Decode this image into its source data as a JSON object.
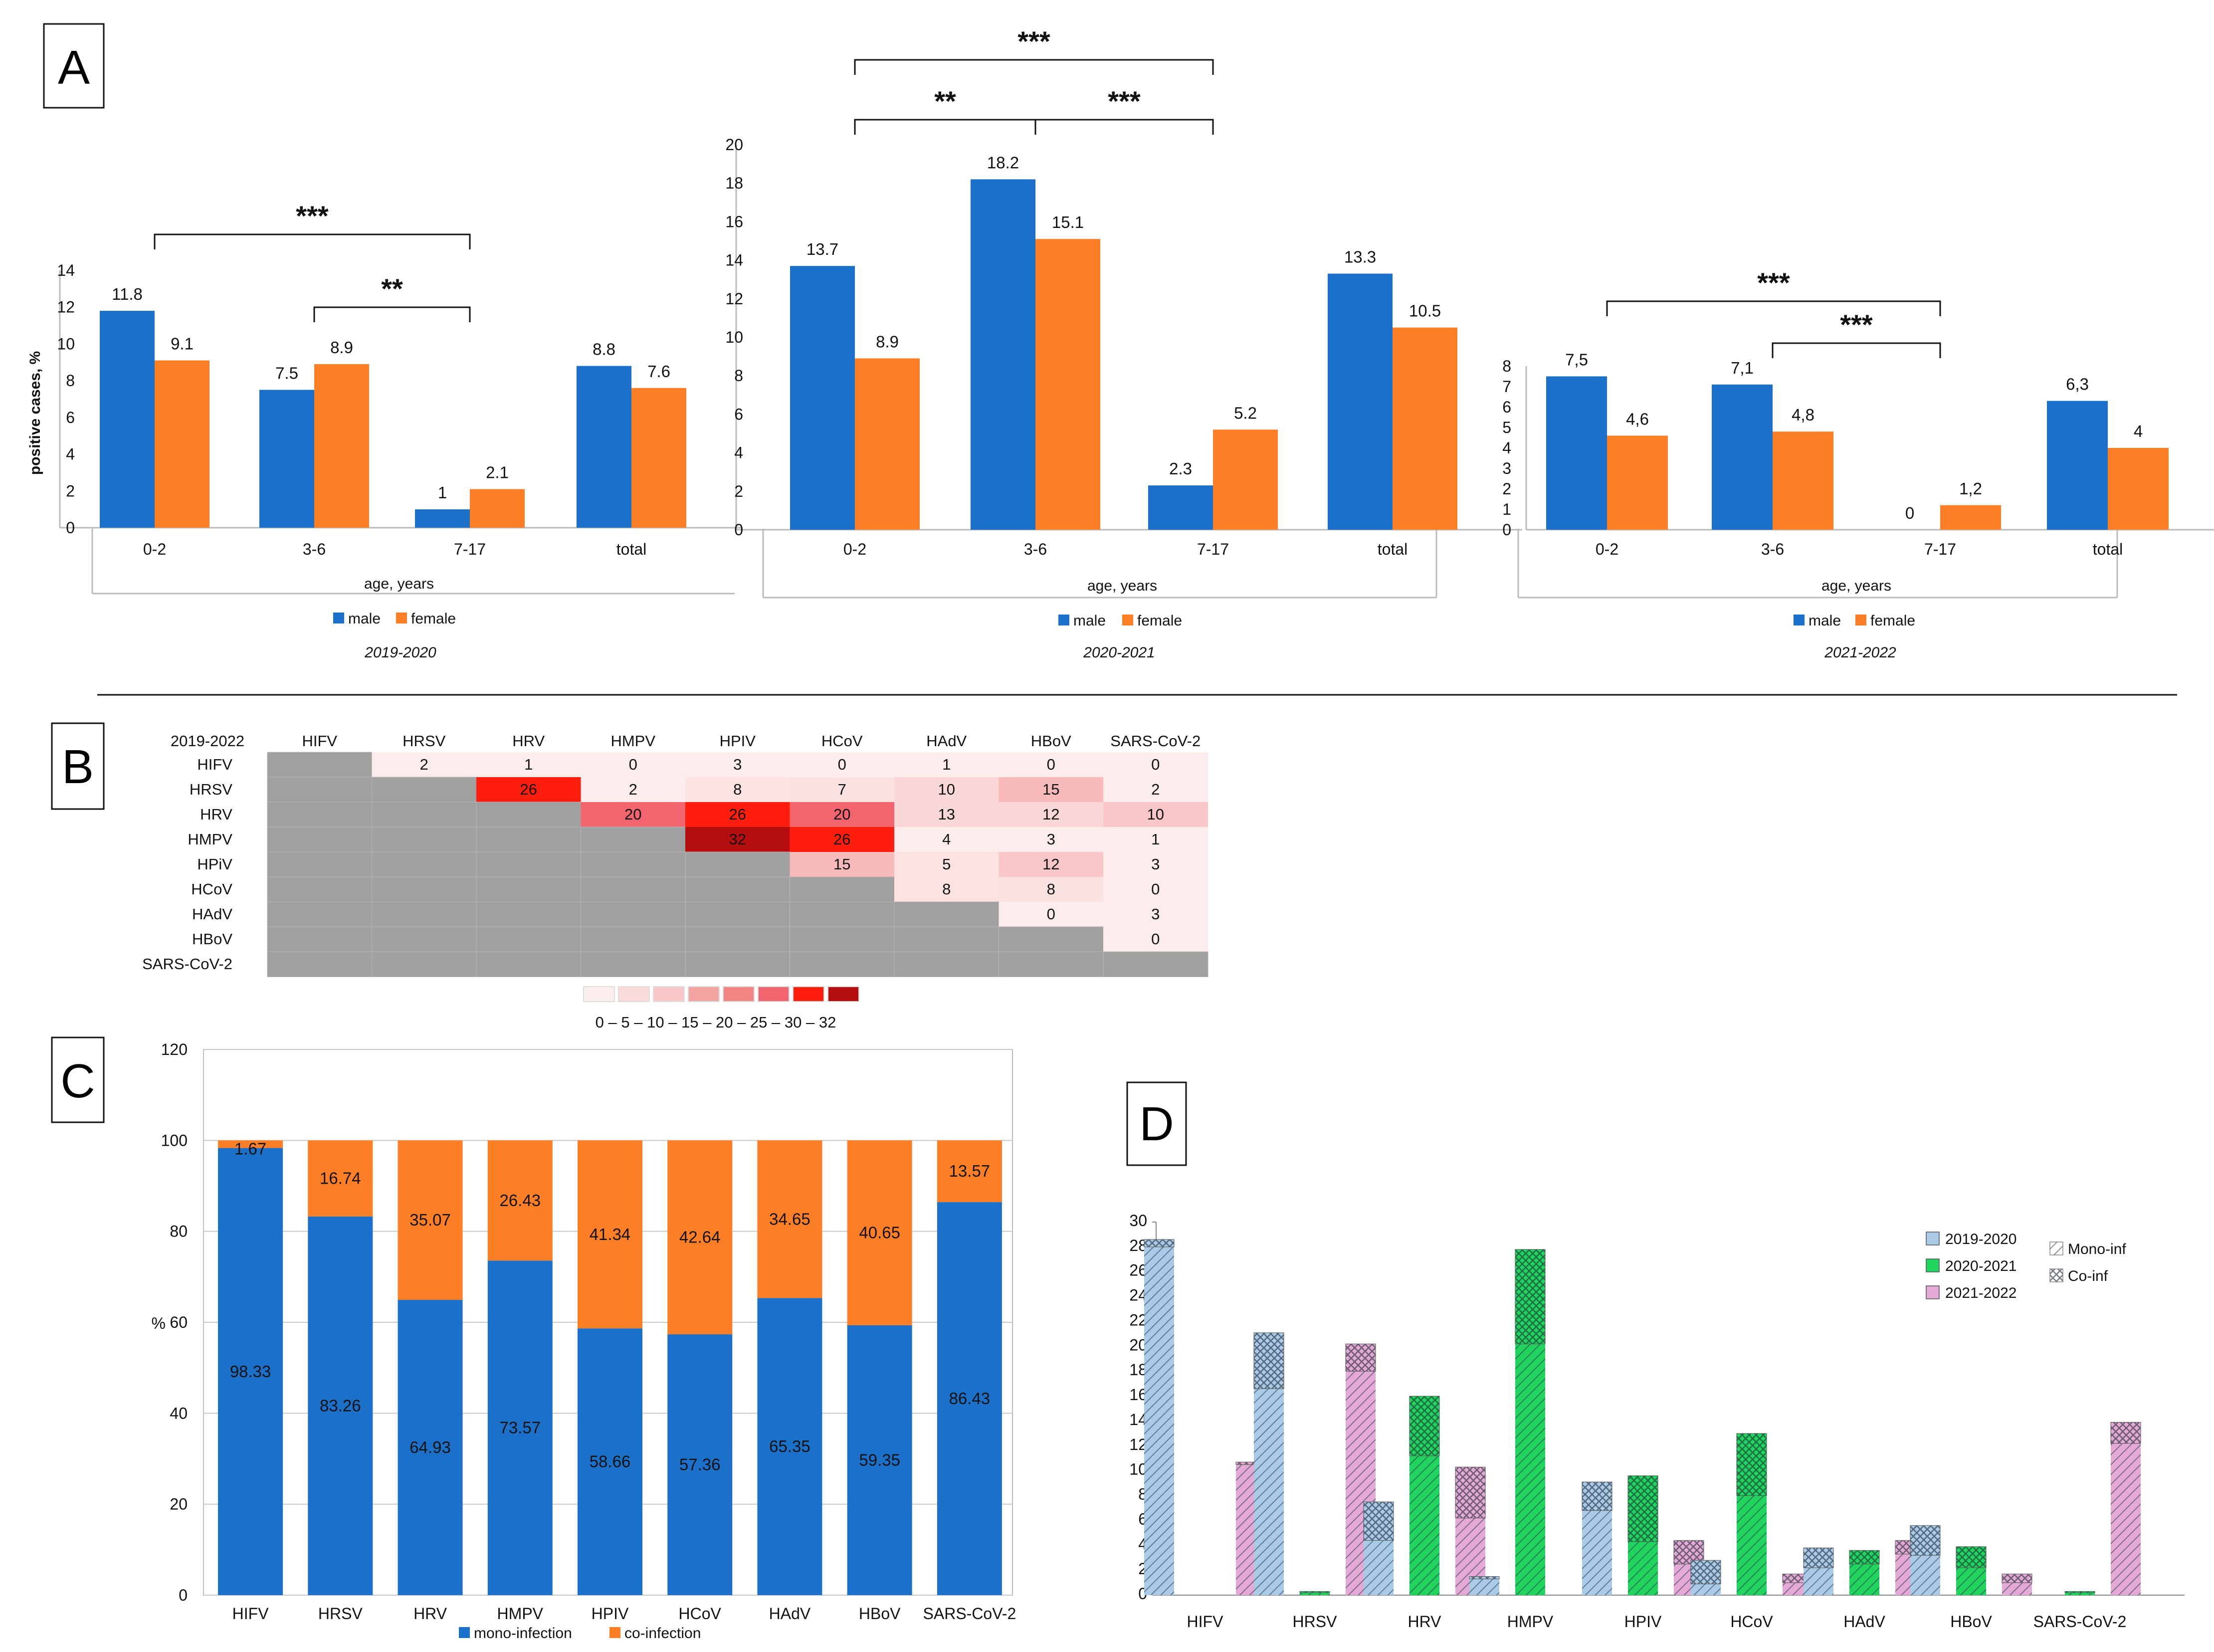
{
  "panel_labels": {
    "a": "A",
    "b": "B",
    "c": "C",
    "d": "D"
  },
  "colors": {
    "male": "#1B71C9",
    "female": "#FF7F27",
    "mono": "#1B71C9",
    "co": "#FF7F27",
    "gray": "#A0A0A0",
    "d_2019": "#A9CBE8",
    "d_2020": "#20D45E",
    "d_2021": "#E5A9D6"
  },
  "chart_data": [
    {
      "id": "A1",
      "type": "bar",
      "subtitle": "2019-2020",
      "categories": [
        "0-2",
        "3-6",
        "7-17",
        "total"
      ],
      "series": [
        {
          "name": "male",
          "values": [
            11.8,
            7.5,
            1,
            8.8
          ],
          "labels": [
            "11.8",
            "7.5",
            "1",
            "8.8"
          ]
        },
        {
          "name": "female",
          "values": [
            9.1,
            8.9,
            2.1,
            7.6
          ],
          "labels": [
            "9.1",
            "8.9",
            "2.1",
            "7.6"
          ]
        }
      ],
      "ylim": [
        0,
        14
      ],
      "yticks": [
        "0",
        "2",
        "4",
        "6",
        "8",
        "10",
        "12",
        "14"
      ],
      "ylabel": "positive cases, %",
      "xlabel": "age, years",
      "significance": [
        {
          "from": "0-2",
          "to": "7-17",
          "label": "***"
        },
        {
          "from": "3-6",
          "to": "7-17",
          "label": "**"
        }
      ]
    },
    {
      "id": "A2",
      "type": "bar",
      "subtitle": "2020-2021",
      "categories": [
        "0-2",
        "3-6",
        "7-17",
        "total"
      ],
      "series": [
        {
          "name": "male",
          "values": [
            13.7,
            18.2,
            2.3,
            13.3
          ],
          "labels": [
            "13.7",
            "18.2",
            "2.3",
            "13.3"
          ]
        },
        {
          "name": "female",
          "values": [
            8.9,
            15.1,
            5.2,
            10.5
          ],
          "labels": [
            "8.9",
            "15.1",
            "5.2",
            "10.5"
          ]
        }
      ],
      "ylim": [
        0,
        20
      ],
      "yticks": [
        "0",
        "2",
        "4",
        "6",
        "8",
        "10",
        "12",
        "14",
        "16",
        "18",
        "20"
      ],
      "ylabel": "",
      "xlabel": "age, years",
      "significance": [
        {
          "from": "0-2",
          "to": "7-17",
          "label": "***"
        },
        {
          "from": "0-2",
          "to": "3-6",
          "label": "**"
        },
        {
          "from": "3-6",
          "to": "7-17",
          "label": "***"
        }
      ]
    },
    {
      "id": "A3",
      "type": "bar",
      "subtitle": "2021-2022",
      "categories": [
        "0-2",
        "3-6",
        "7-17",
        "total"
      ],
      "series": [
        {
          "name": "male",
          "values": [
            7.5,
            7.1,
            0,
            6.3
          ],
          "labels": [
            "7,5",
            "7,1",
            "0",
            "6,3"
          ]
        },
        {
          "name": "female",
          "values": [
            4.6,
            4.8,
            1.2,
            4
          ],
          "labels": [
            "4,6",
            "4,8",
            "1,2",
            "4"
          ]
        }
      ],
      "ylim": [
        0,
        8
      ],
      "yticks": [
        "0",
        "1",
        "2",
        "3",
        "4",
        "5",
        "6",
        "7",
        "8"
      ],
      "ylabel": "",
      "xlabel": "age, years",
      "significance": [
        {
          "from": "0-2",
          "to": "7-17",
          "label": "***"
        },
        {
          "from": "3-6",
          "to": "7-17",
          "label": "***"
        }
      ]
    },
    {
      "id": "B",
      "type": "heatmap",
      "title": "2019-2022",
      "columns": [
        "HIFV",
        "HRSV",
        "HRV",
        "HMPV",
        "HPIV",
        "HCoV",
        "HAdV",
        "HBoV",
        "SARS-CoV-2"
      ],
      "rows": [
        "HIFV",
        "HRSV",
        "HRV",
        "HMPV",
        "HPiV",
        "HCoV",
        "HAdV",
        "HBoV",
        "SARS-CoV-2"
      ],
      "values": [
        [
          null,
          2,
          1,
          0,
          3,
          0,
          1,
          0,
          0
        ],
        [
          null,
          null,
          26,
          2,
          8,
          7,
          10,
          15,
          2
        ],
        [
          null,
          null,
          null,
          20,
          26,
          20,
          13,
          12,
          10
        ],
        [
          null,
          null,
          null,
          null,
          32,
          26,
          4,
          3,
          1
        ],
        [
          null,
          null,
          null,
          null,
          null,
          15,
          5,
          12,
          3
        ],
        [
          null,
          null,
          null,
          null,
          null,
          null,
          8,
          8,
          0
        ],
        [
          null,
          null,
          null,
          null,
          null,
          null,
          null,
          0,
          3
        ],
        [
          null,
          null,
          null,
          null,
          null,
          null,
          null,
          null,
          0
        ],
        [
          null,
          null,
          null,
          null,
          null,
          null,
          null,
          null,
          null
        ]
      ],
      "scale_label": "0 – 5 – 10 – 15 – 20 – 25 – 30 – 32",
      "scale_colors": [
        "#FDEEEE",
        "#FBDADA",
        "#F9C7C7",
        "#F6A3A3",
        "#F38484",
        "#F2646E",
        "#FF1E0E",
        "#B50E0E"
      ]
    },
    {
      "id": "C",
      "type": "bar",
      "stacked": true,
      "categories": [
        "HIFV",
        "HRSV",
        "HRV",
        "HMPV",
        "HPIV",
        "HCoV",
        "HAdV",
        "HBoV",
        "SARS-CoV-2"
      ],
      "series": [
        {
          "name": "mono-infection",
          "values": [
            98.33,
            83.26,
            64.93,
            73.57,
            58.66,
            57.36,
            65.35,
            59.35,
            86.43
          ]
        },
        {
          "name": "co-infection",
          "values": [
            1.67,
            16.74,
            35.07,
            26.43,
            41.34,
            42.64,
            34.65,
            40.65,
            13.57
          ]
        }
      ],
      "ylim": [
        0,
        120
      ],
      "yticks": [
        "0",
        "20",
        "40",
        "60",
        "80",
        "100",
        "120"
      ],
      "ylabel": "%"
    },
    {
      "id": "D",
      "type": "bar",
      "stacked": true,
      "categories": [
        "HIFV",
        "HRSV",
        "HRV",
        "HMPV",
        "HPIV",
        "HCoV",
        "HAdV",
        "HBoV",
        "SARS-CoV-2"
      ],
      "years": [
        "2019-2020",
        "2020-2021",
        "2021-2022"
      ],
      "mono": [
        [
          28,
          0,
          10.5
        ],
        [
          16.6,
          0.2,
          18
        ],
        [
          4.4,
          11.2,
          6.2
        ],
        [
          1.3,
          20.2,
          0
        ],
        [
          6.8,
          4.3,
          2.5
        ],
        [
          0.9,
          8,
          1
        ],
        [
          2.2,
          2.5,
          3.3
        ],
        [
          3.2,
          2.2,
          1
        ]
      ],
      "co": [
        [
          0.6,
          0,
          0.2
        ],
        [
          4.5,
          0.1,
          2.2
        ],
        [
          3.1,
          4.8,
          4.1
        ],
        [
          0.2,
          7.6,
          0
        ],
        [
          2.3,
          5.3,
          1.9
        ],
        [
          1.9,
          5,
          0.7
        ],
        [
          1.6,
          1.1,
          1.1
        ],
        [
          2.4,
          1.7,
          0.7
        ]
      ],
      "sars": {
        "mono": [
          0,
          0.2,
          12.2
        ],
        "co": [
          0,
          0.1,
          1.7
        ]
      },
      "legend_mono": "Mono-inf",
      "legend_co": "Co-inf",
      "ylim": [
        0,
        30
      ],
      "yticks": [
        "0",
        "2",
        "4",
        "6",
        "8",
        "10",
        "12",
        "14",
        "16",
        "18",
        "20",
        "22",
        "24",
        "26",
        "28",
        "30"
      ]
    }
  ]
}
